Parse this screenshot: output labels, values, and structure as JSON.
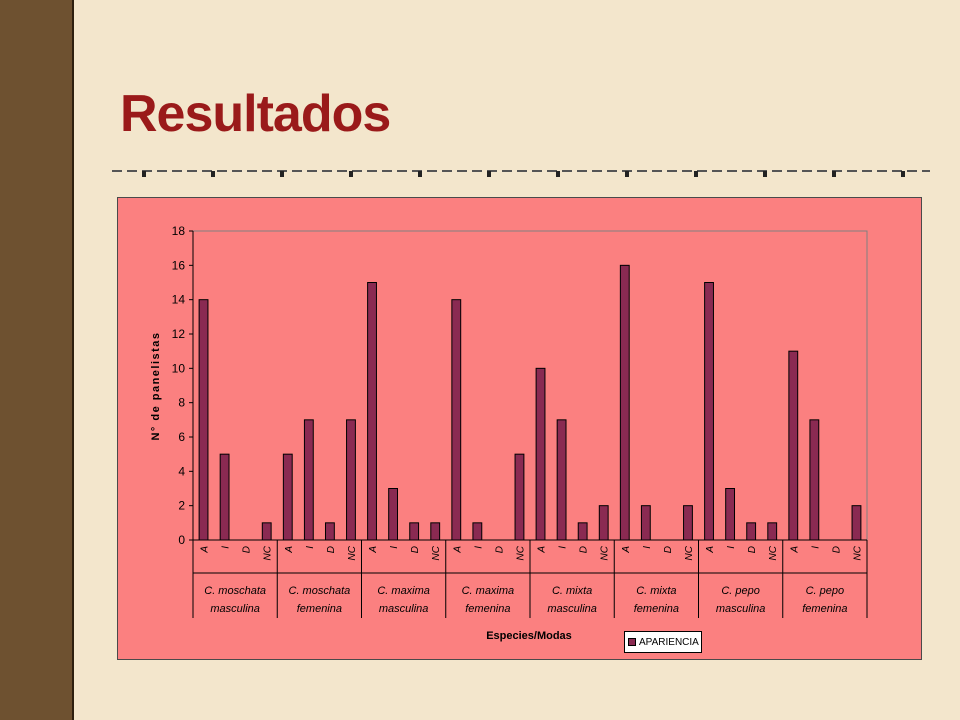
{
  "slide": {
    "title": "Resultados"
  },
  "colors": {
    "bar": "#8a2a52",
    "panel": "#fb8080",
    "title": "#9a1a1a"
  },
  "chart_data": {
    "type": "bar",
    "ylabel": "N° de panelistas",
    "xlabel": "Especies/Modas",
    "ylim": [
      0,
      18
    ],
    "yticks": [
      0,
      2,
      4,
      6,
      8,
      10,
      12,
      14,
      16,
      18
    ],
    "grid": false,
    "legend_position": "bottom-right",
    "groups": [
      {
        "label_line1": "C. moschata",
        "label_line2": "masculina",
        "categories": [
          "A",
          "I",
          "D",
          "NC"
        ],
        "values": [
          14,
          5,
          0,
          1
        ]
      },
      {
        "label_line1": "C. moschata",
        "label_line2": "femenina",
        "categories": [
          "A",
          "I",
          "D",
          "NC"
        ],
        "values": [
          5,
          7,
          1,
          7
        ]
      },
      {
        "label_line1": "C. maxima",
        "label_line2": "masculina",
        "categories": [
          "A",
          "I",
          "D",
          "NC"
        ],
        "values": [
          15,
          3,
          1,
          1
        ]
      },
      {
        "label_line1": "C. maxima",
        "label_line2": "femenina",
        "categories": [
          "A",
          "I",
          "D",
          "NC"
        ],
        "values": [
          14,
          1,
          0,
          5
        ]
      },
      {
        "label_line1": "C. mixta",
        "label_line2": "masculina",
        "categories": [
          "A",
          "I",
          "D",
          "NC"
        ],
        "values": [
          10,
          7,
          1,
          2
        ]
      },
      {
        "label_line1": "C. mixta",
        "label_line2": "femenina",
        "categories": [
          "A",
          "I",
          "D",
          "NC"
        ],
        "values": [
          16,
          2,
          0,
          2
        ]
      },
      {
        "label_line1": "C. pepo",
        "label_line2": "masculina",
        "categories": [
          "A",
          "I",
          "D",
          "NC"
        ],
        "values": [
          15,
          3,
          1,
          1
        ]
      },
      {
        "label_line1": "C. pepo",
        "label_line2": "femenina",
        "categories": [
          "A",
          "I",
          "D",
          "NC"
        ],
        "values": [
          11,
          7,
          0,
          2
        ]
      }
    ],
    "series": [
      {
        "name": "APARIENCIA"
      }
    ]
  }
}
